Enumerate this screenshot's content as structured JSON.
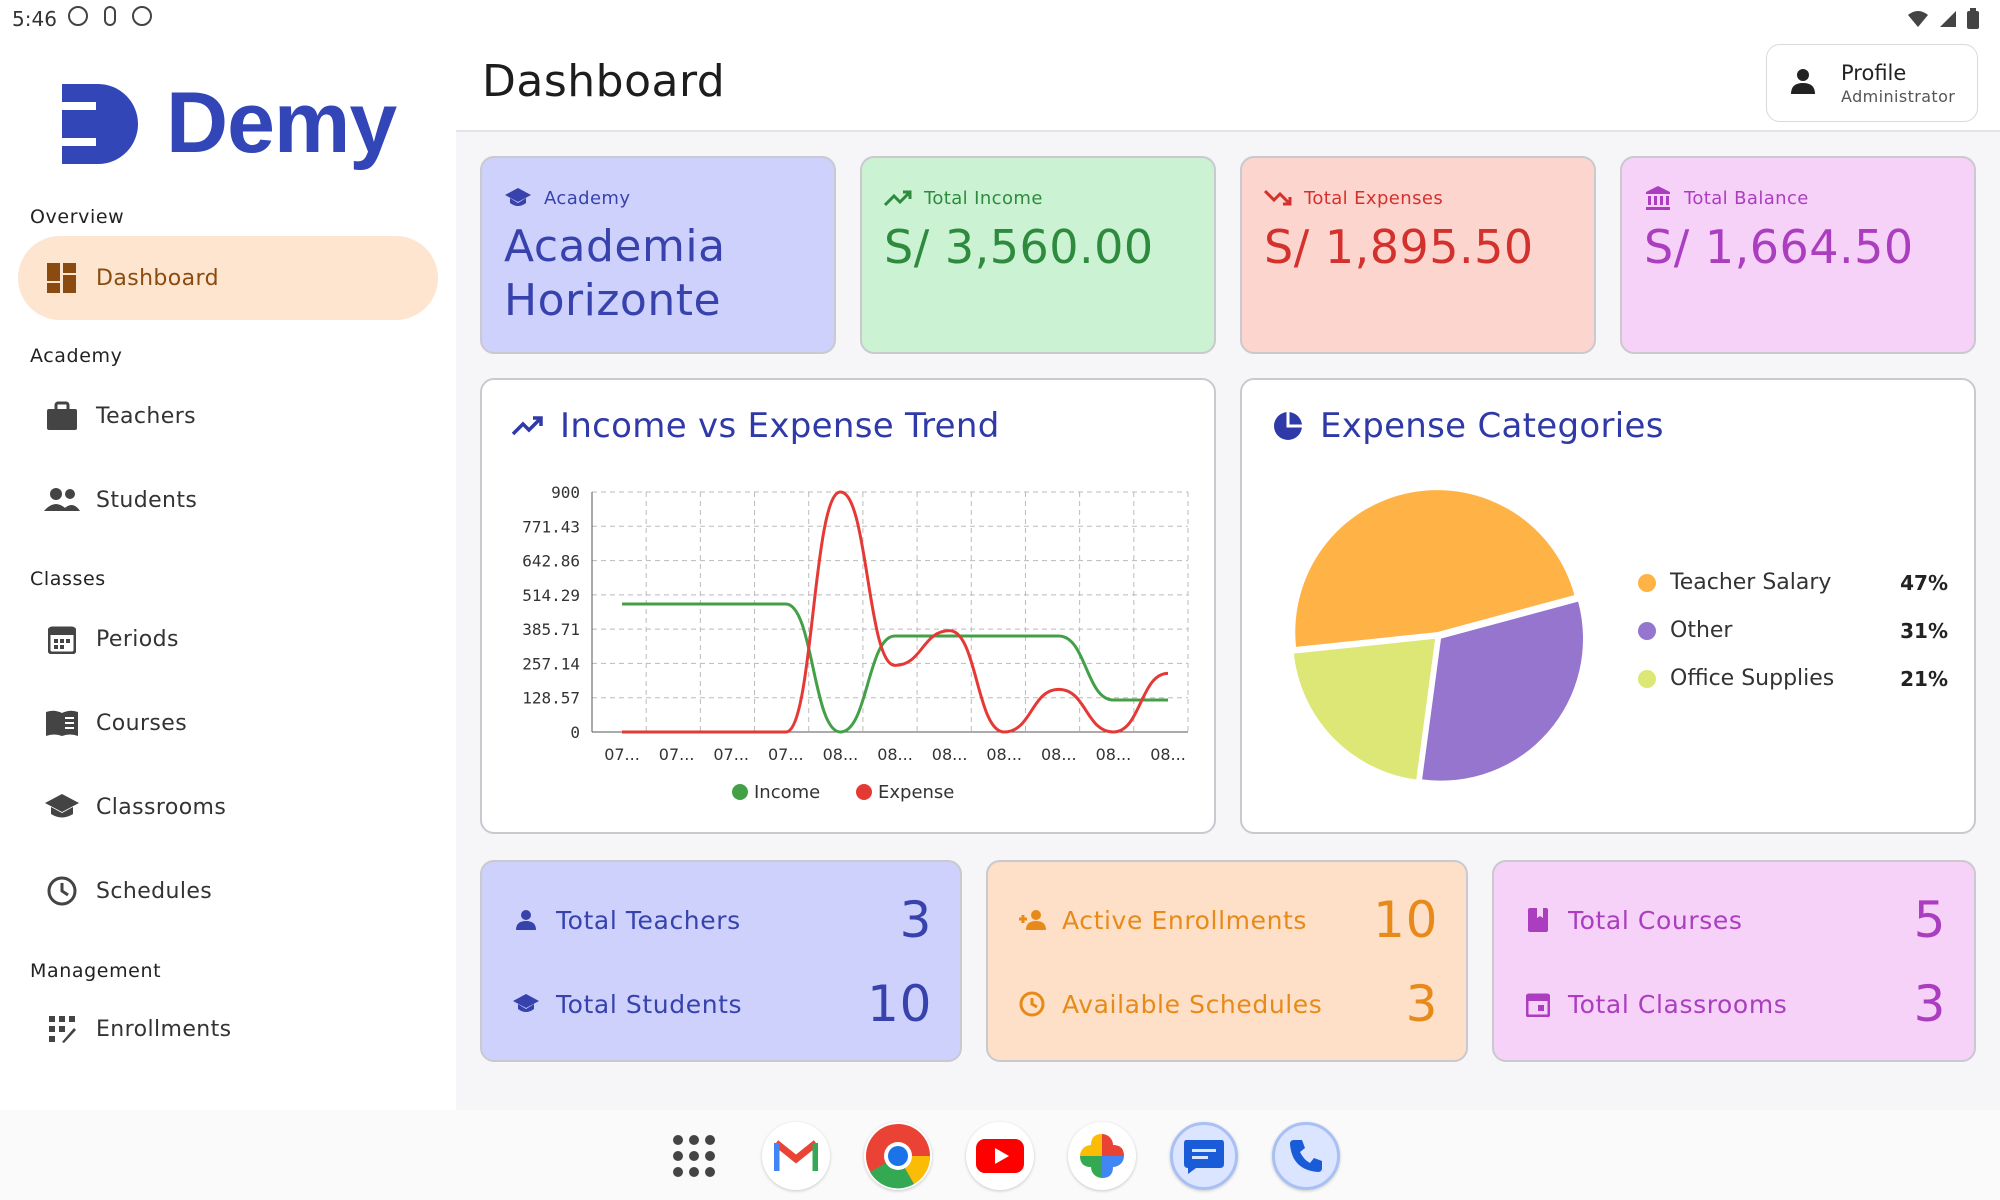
{
  "status": {
    "time": "5:46"
  },
  "app": {
    "name": "Demy"
  },
  "header": {
    "title": "Dashboard",
    "profile_name": "Profile",
    "profile_role": "Administrator"
  },
  "sidebar": {
    "sections": [
      "Overview",
      "Academy",
      "Classes",
      "Management"
    ],
    "items": [
      {
        "label": "Dashboard",
        "icon": "dashboard-icon",
        "active": true
      },
      {
        "label": "Teachers",
        "icon": "briefcase-icon"
      },
      {
        "label": "Students",
        "icon": "people-icon"
      },
      {
        "label": "Periods",
        "icon": "calendar-icon"
      },
      {
        "label": "Courses",
        "icon": "book-icon"
      },
      {
        "label": "Classrooms",
        "icon": "school-icon"
      },
      {
        "label": "Schedules",
        "icon": "clock-icon"
      },
      {
        "label": "Enrollments",
        "icon": "grid-icon"
      }
    ]
  },
  "stats": [
    {
      "label": "Academy",
      "value": "Academia Horizonte",
      "icon": "school-icon",
      "bg": "#cdd1fb",
      "fg": "#3742ad"
    },
    {
      "label": "Total Income",
      "value": "S/ 3,560.00",
      "icon": "trend-up-icon",
      "bg": "#caf2d3",
      "fg": "#2e8b3e"
    },
    {
      "label": "Total Expenses",
      "value": "S/ 1,895.50",
      "icon": "trend-down-icon",
      "bg": "#fdd5cf",
      "fg": "#d3312d"
    },
    {
      "label": "Total Balance",
      "value": "S/ 1,664.50",
      "icon": "bank-icon",
      "bg": "#f6d1f8",
      "fg": "#ab3dbf"
    }
  ],
  "trend": {
    "title": "Income vs Expense Trend",
    "icon": "trend-up-icon"
  },
  "expenses": {
    "title": "Expense Categories",
    "icon": "pie-icon"
  },
  "chart_data": [
    {
      "type": "line",
      "title": "Income vs Expense Trend",
      "x": [
        "07...",
        "07...",
        "07...",
        "07...",
        "08...",
        "08...",
        "08...",
        "08...",
        "08...",
        "08...",
        "08..."
      ],
      "yticks": [
        "0",
        "128.57",
        "257.14",
        "385.71",
        "514.29",
        "642.86",
        "771.43",
        "900"
      ],
      "ylim": [
        0,
        900
      ],
      "series": [
        {
          "name": "Income",
          "color": "#43a047",
          "values": [
            480,
            480,
            480,
            480,
            0,
            360,
            360,
            360,
            360,
            120,
            120
          ]
        },
        {
          "name": "Expense",
          "color": "#e53935",
          "values": [
            0,
            0,
            0,
            0,
            900,
            250,
            380,
            0,
            160,
            0,
            220
          ]
        }
      ],
      "grid": true,
      "legend": "bottom"
    },
    {
      "type": "pie",
      "title": "Expense Categories",
      "slices": [
        {
          "label": "Teacher Salary",
          "value": 47,
          "pct": "47%",
          "color": "#ffb347"
        },
        {
          "label": "Other",
          "value": 31,
          "pct": "31%",
          "color": "#9575cd"
        },
        {
          "label": "Office Supplies",
          "value": 21,
          "pct": "21%",
          "color": "#dce775"
        }
      ],
      "legend": "right"
    }
  ],
  "summary": [
    {
      "bg": "#cdd1fb",
      "fg": "#3742ad",
      "rows": [
        {
          "label": "Total Teachers",
          "value": "3",
          "icon": "person-icon"
        },
        {
          "label": "Total Students",
          "value": "10",
          "icon": "school-icon"
        }
      ]
    },
    {
      "bg": "#fde0c7",
      "fg": "#e88a1a",
      "rows": [
        {
          "label": "Active Enrollments",
          "value": "10",
          "icon": "person-add-icon"
        },
        {
          "label": "Available Schedules",
          "value": "3",
          "icon": "clock-icon"
        }
      ]
    },
    {
      "bg": "#f6d1f8",
      "fg": "#ab3dbf",
      "rows": [
        {
          "label": "Total Courses",
          "value": "5",
          "icon": "bookmark-icon"
        },
        {
          "label": "Total Classrooms",
          "value": "3",
          "icon": "calendar-icon"
        }
      ]
    }
  ],
  "dock": [
    "apps-icon",
    "gmail-icon",
    "chrome-icon",
    "youtube-icon",
    "photos-icon",
    "messages-icon",
    "phone-icon"
  ]
}
